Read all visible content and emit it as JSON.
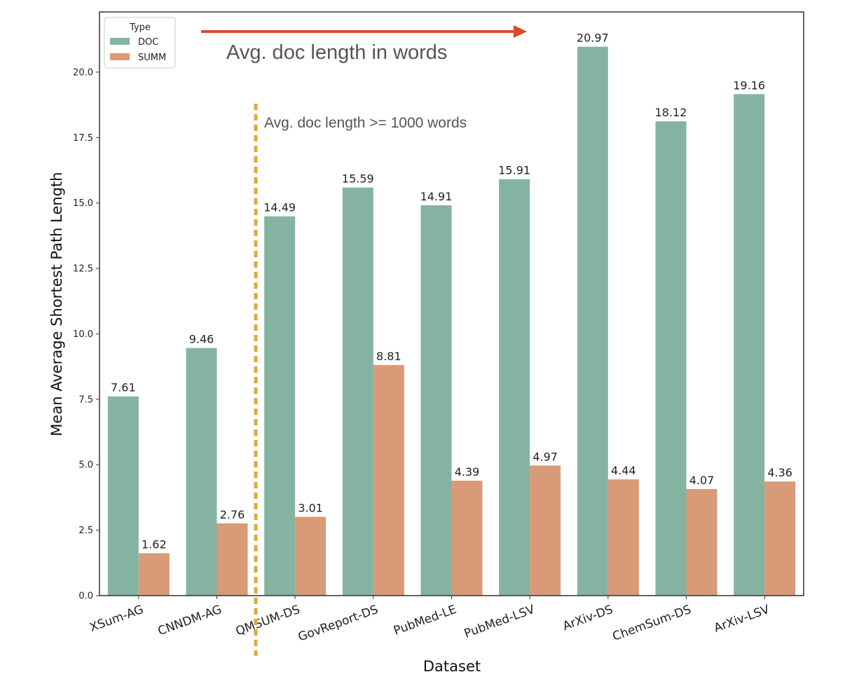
{
  "chart_data": {
    "type": "bar",
    "categories": [
      "XSum-AG",
      "CNNDM-AG",
      "QMSUM-DS",
      "GovReport-DS",
      "PubMed-LE",
      "PubMed-LSV",
      "ArXiv-DS",
      "ChemSum-DS",
      "ArXiv-LSV"
    ],
    "series": [
      {
        "name": "DOC",
        "color": "#84b3a2",
        "values": [
          7.61,
          9.46,
          14.49,
          15.59,
          14.91,
          15.91,
          20.97,
          18.12,
          19.16
        ],
        "labels": [
          "7.61",
          "9.46",
          "14.49",
          "15.59",
          "14.91",
          "15.91",
          "20.97",
          "18.12",
          "19.16"
        ]
      },
      {
        "name": "SUMM",
        "color": "#d99a78",
        "values": [
          1.62,
          2.76,
          3.01,
          8.81,
          4.39,
          4.97,
          4.44,
          4.07,
          4.36
        ],
        "labels": [
          "1.62",
          "2.76",
          "3.01",
          "8.81",
          "4.39",
          "4.97",
          "4.44",
          "4.07",
          "4.36"
        ]
      }
    ],
    "xlabel": "Dataset",
    "ylabel": "Mean Average Shortest Path Length",
    "ylim": [
      0,
      22.3
    ],
    "yticks": [
      0,
      2.5,
      5,
      7.5,
      10,
      12.5,
      15,
      17.5,
      20
    ],
    "ytick_labels": [
      "0.0",
      "2.5",
      "5.0",
      "7.5",
      "10.0",
      "12.5",
      "15.0",
      "17.5",
      "20.0"
    ],
    "legend": {
      "title": "Type",
      "placement": "top-left"
    },
    "annotations": {
      "arrow_text": "Avg. doc length in words",
      "divider_text": "Avg. doc length >= 1000 words",
      "arrow_color": "#e0462e",
      "divider_color": "#e3a73b"
    }
  }
}
